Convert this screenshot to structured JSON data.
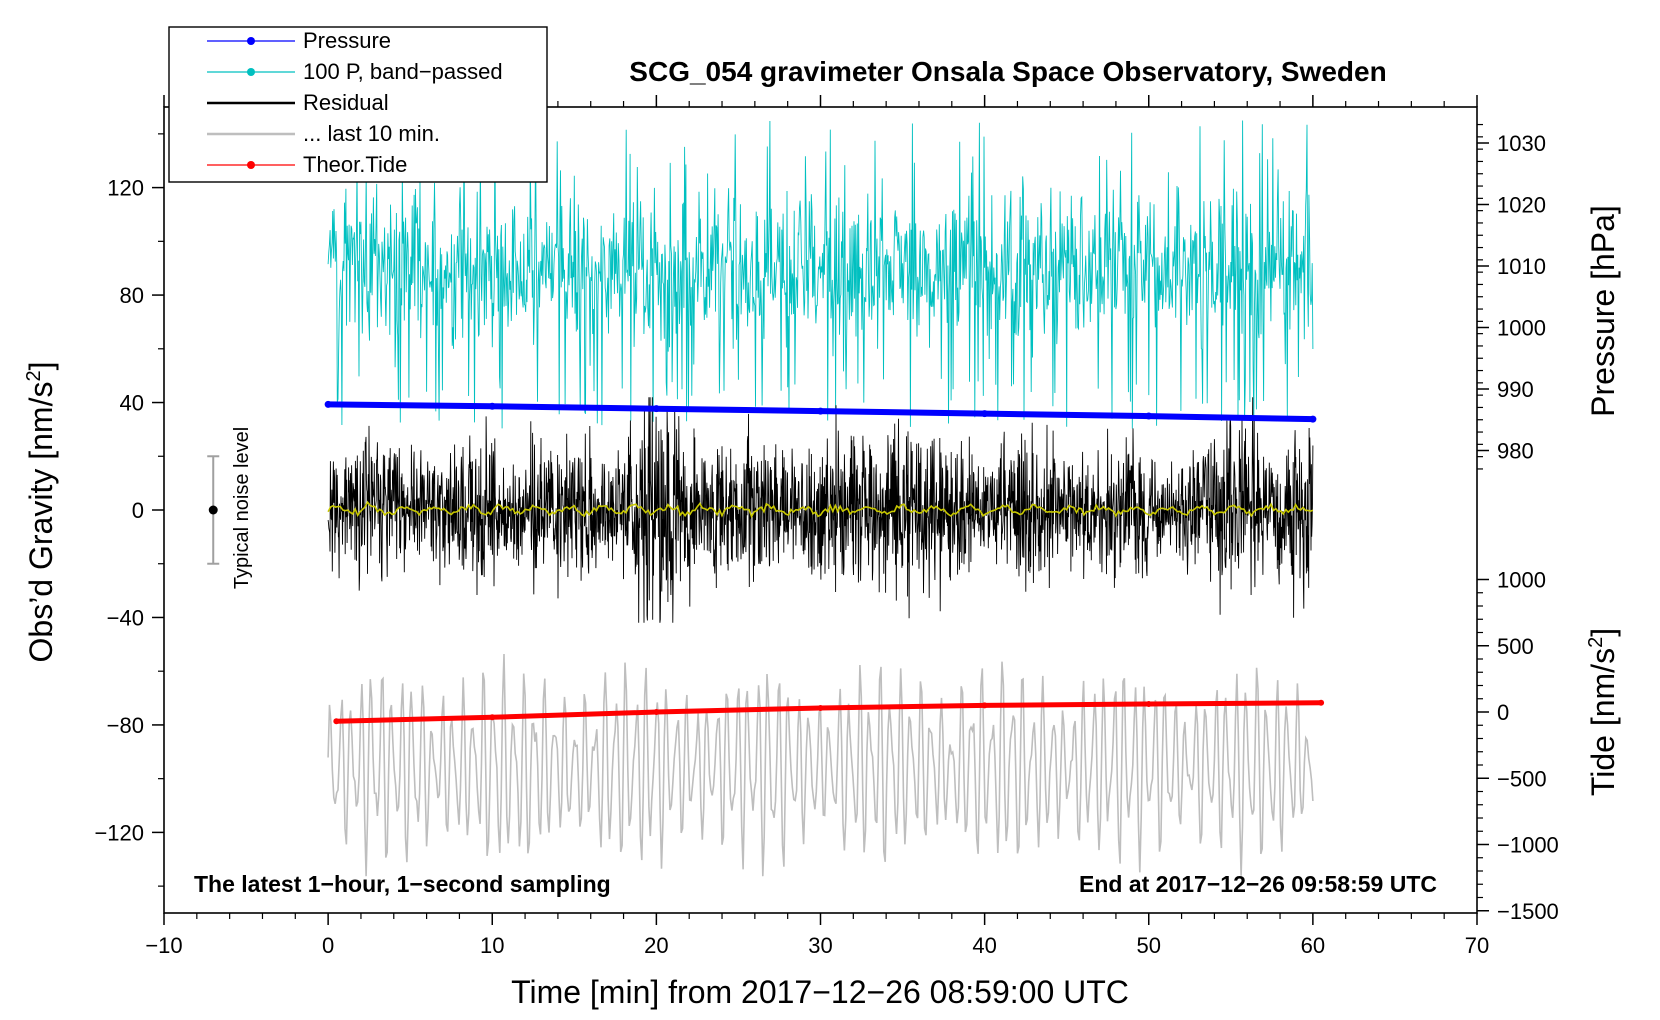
{
  "chart_data": {
    "type": "line",
    "title": "SCG_054 gravimeter Onsala Space Observatory, Sweden",
    "xlabel": "Time [min] from 2017−12−26 08:59:00 UTC",
    "ylabel_left": "Obs’d Gravity [nm/s",
    "ylabel_left_sup": "2",
    "ylabel_left_end": "]",
    "ylabel_right_pressure": "Pressure [hPa]",
    "ylabel_right_tide": "Tide [nm/s",
    "ylabel_right_tide_sup": "2",
    "ylabel_right_tide_end": "]",
    "xlim": [
      -10,
      70
    ],
    "ylim_left": [
      -150,
      150
    ],
    "ylim_pressure_axis": [
      970,
      1035
    ],
    "ylim_tide_axis": [
      -1500,
      1000
    ],
    "x_ticks": [
      -10,
      0,
      10,
      20,
      30,
      40,
      50,
      60,
      70
    ],
    "x_tick_labels": [
      "−10",
      "0",
      "10",
      "20",
      "30",
      "40",
      "50",
      "60",
      "70"
    ],
    "y_left_ticks": [
      120,
      80,
      40,
      0,
      -40,
      -80,
      -120
    ],
    "y_left_tick_labels": [
      "120",
      "80",
      "40",
      "0",
      "−40",
      "−80",
      "−120"
    ],
    "pressure_ticks": [
      1030,
      1020,
      1010,
      1000,
      990,
      980
    ],
    "pressure_tick_labels": [
      "1030",
      "1020",
      "1010",
      "1000",
      "990",
      "980"
    ],
    "tide_ticks": [
      1000,
      500,
      0,
      -500,
      -1000,
      -1500
    ],
    "tide_tick_labels": [
      "1000",
      "500",
      "0",
      "−500",
      "−1000",
      "−1500"
    ],
    "legend": {
      "position": "top-left",
      "entries": [
        {
          "label": "Pressure",
          "color": "#0000ff",
          "marker": true
        },
        {
          "label": "100 P, band−passed",
          "color": "#00c0c0",
          "marker": true
        },
        {
          "label": "Residual",
          "color": "#000000",
          "marker": false
        },
        {
          "label": "... last 10 min.",
          "color": "#bebebe",
          "marker": false
        },
        {
          "label": "Theor.Tide",
          "color": "#ff0000",
          "marker": true
        }
      ]
    },
    "annotations": {
      "noise_label": "Typical noise level",
      "noise_range": [
        -20,
        20
      ],
      "noise_x": -7,
      "bottom_left": "The latest 1−hour, 1−second sampling",
      "bottom_right": "End at 2017−12−26 09:58:59 UTC"
    },
    "series": [
      {
        "name": "Pressure",
        "color": "#0000ff",
        "axis": "pressure",
        "x": [
          0,
          10,
          20,
          30,
          40,
          50,
          60
        ],
        "values": [
          987.5,
          987.2,
          986.8,
          986.4,
          986.0,
          985.6,
          985.1
        ]
      },
      {
        "name": "100 P, band−passed",
        "color": "#00c0c0",
        "axis": "left",
        "x_range": [
          0,
          60
        ],
        "typical_center": 90,
        "typical_spread": [
          20,
          140
        ]
      },
      {
        "name": "Residual",
        "color": "#000000",
        "axis": "left",
        "x_range": [
          0,
          60
        ],
        "typical_center": 0,
        "typical_spread": [
          -42,
          42
        ]
      },
      {
        "name": "Residual smoothed",
        "color": "#c8c800",
        "axis": "left",
        "x_range": [
          0,
          60
        ],
        "typical_center": 0,
        "typical_spread": [
          -3,
          3
        ]
      },
      {
        "name": "... last 10 min.",
        "color": "#bebebe",
        "axis": "left",
        "x_range": [
          0,
          60
        ],
        "typical_center": -95,
        "typical_spread": [
          -135,
          -55
        ]
      },
      {
        "name": "Theor.Tide",
        "color": "#ff0000",
        "axis": "tide",
        "x": [
          0.5,
          10,
          20,
          30,
          40,
          50,
          60.5
        ],
        "values": [
          -70,
          -40,
          0,
          30,
          50,
          60,
          70
        ]
      }
    ]
  }
}
